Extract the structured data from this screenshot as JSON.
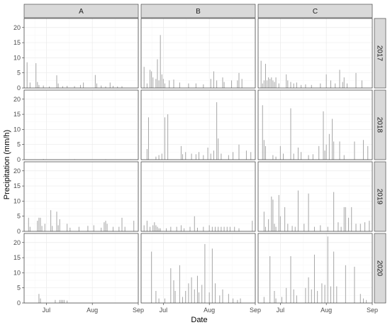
{
  "chart_data": {
    "type": "bar",
    "xlabel": "Date",
    "ylabel": "Precipitation (mm/h)",
    "columns": [
      "A",
      "B",
      "C"
    ],
    "rows": [
      "2017",
      "2018",
      "2019",
      "2020"
    ],
    "x_range": [
      "2017-06-16",
      "2017-09-01"
    ],
    "x_ticks": [
      {
        "date": "2017-07-01",
        "label": "Jul"
      },
      {
        "date": "2017-08-01",
        "label": "Aug"
      },
      {
        "date": "2017-09-01",
        "label": "Sep"
      }
    ],
    "ylim": [
      0,
      23
    ],
    "y_ticks": [
      0,
      5,
      10,
      15,
      20
    ],
    "grid": true,
    "bar_color": "#a6a6a6",
    "panels": {
      "2017": {
        "A": [
          [
            "2017-06-18",
            8.5
          ],
          [
            "2017-06-20",
            1.8
          ],
          [
            "2017-06-24",
            8.2
          ],
          [
            "2017-06-25",
            2.0
          ],
          [
            "2017-06-26",
            1.0
          ],
          [
            "2017-06-29",
            0.8
          ],
          [
            "2017-07-03",
            0.5
          ],
          [
            "2017-07-08",
            4.2
          ],
          [
            "2017-07-09",
            1.5
          ],
          [
            "2017-07-12",
            0.6
          ],
          [
            "2017-07-15",
            0.7
          ],
          [
            "2017-07-20",
            0.6
          ],
          [
            "2017-07-24",
            1.0
          ],
          [
            "2017-07-26",
            1.8
          ],
          [
            "2017-08-03",
            4.3
          ],
          [
            "2017-08-04",
            1.5
          ],
          [
            "2017-08-07",
            0.8
          ],
          [
            "2017-08-10",
            0.5
          ],
          [
            "2017-08-13",
            1.8
          ],
          [
            "2017-08-15",
            0.7
          ],
          [
            "2017-08-18",
            0.5
          ],
          [
            "2017-08-21",
            0.6
          ]
        ],
        "B": [
          [
            "2017-06-18",
            7.0
          ],
          [
            "2017-06-20",
            1.5
          ],
          [
            "2017-06-22",
            6.0
          ],
          [
            "2017-06-23",
            5.5
          ],
          [
            "2017-06-24",
            3.5
          ],
          [
            "2017-06-26",
            3.0
          ],
          [
            "2017-06-27",
            9.5
          ],
          [
            "2017-06-28",
            2.5
          ],
          [
            "2017-06-29",
            17.5
          ],
          [
            "2017-06-30",
            4.5
          ],
          [
            "2017-07-01",
            3.0
          ],
          [
            "2017-07-02",
            1.5
          ],
          [
            "2017-07-05",
            2.5
          ],
          [
            "2017-07-08",
            2.8
          ],
          [
            "2017-07-12",
            1.8
          ],
          [
            "2017-07-18",
            1.5
          ],
          [
            "2017-07-23",
            1.5
          ],
          [
            "2017-07-28",
            1.2
          ],
          [
            "2017-08-02",
            3.0
          ],
          [
            "2017-08-04",
            5.5
          ],
          [
            "2017-08-06",
            2.5
          ],
          [
            "2017-08-10",
            3.5
          ],
          [
            "2017-08-11",
            2.0
          ],
          [
            "2017-08-16",
            2.5
          ],
          [
            "2017-08-20",
            2.5
          ],
          [
            "2017-08-21",
            5.0
          ],
          [
            "2017-08-23",
            3.0
          ]
        ],
        "C": [
          [
            "2017-06-18",
            9.0
          ],
          [
            "2017-06-19",
            1.5
          ],
          [
            "2017-06-20",
            2.5
          ],
          [
            "2017-06-21",
            8.0
          ],
          [
            "2017-06-22",
            2.5
          ],
          [
            "2017-06-23",
            3.5
          ],
          [
            "2017-06-24",
            3.0
          ],
          [
            "2017-06-25",
            3.5
          ],
          [
            "2017-06-26",
            2.5
          ],
          [
            "2017-06-27",
            2.0
          ],
          [
            "2017-06-28",
            3.5
          ],
          [
            "2017-06-30",
            1.5
          ],
          [
            "2017-07-05",
            4.5
          ],
          [
            "2017-07-06",
            2.5
          ],
          [
            "2017-07-08",
            2.0
          ],
          [
            "2017-07-10",
            1.5
          ],
          [
            "2017-07-12",
            1.8
          ],
          [
            "2017-07-15",
            1.0
          ],
          [
            "2017-07-18",
            1.2
          ],
          [
            "2017-07-22",
            1.0
          ],
          [
            "2017-07-28",
            1.5
          ],
          [
            "2017-08-01",
            4.5
          ],
          [
            "2017-08-04",
            2.5
          ],
          [
            "2017-08-07",
            1.5
          ],
          [
            "2017-08-10",
            6.0
          ],
          [
            "2017-08-12",
            2.0
          ],
          [
            "2017-08-13",
            3.5
          ],
          [
            "2017-08-15",
            1.5
          ],
          [
            "2017-08-21",
            5.0
          ],
          [
            "2017-08-25",
            2.5
          ]
        ]
      },
      "2018": {
        "A": [
          [
            "2017-06-29",
            0.2
          ],
          [
            "2017-07-20",
            0.15
          ],
          [
            "2017-08-10",
            0.15
          ],
          [
            "2017-08-27",
            0.1
          ]
        ],
        "B": [
          [
            "2017-06-20",
            3.5
          ],
          [
            "2017-06-21",
            14.0
          ],
          [
            "2017-06-26",
            1.0
          ],
          [
            "2017-06-28",
            1.5
          ],
          [
            "2017-06-30",
            2.0
          ],
          [
            "2017-07-02",
            14.0
          ],
          [
            "2017-07-04",
            15.0
          ],
          [
            "2017-07-13",
            4.5
          ],
          [
            "2017-07-14",
            1.8
          ],
          [
            "2017-07-16",
            2.5
          ],
          [
            "2017-07-20",
            2.0
          ],
          [
            "2017-07-23",
            1.8
          ],
          [
            "2017-07-25",
            2.5
          ],
          [
            "2017-07-28",
            1.5
          ],
          [
            "2017-07-31",
            4.0
          ],
          [
            "2017-08-02",
            2.0
          ],
          [
            "2017-08-04",
            3.0
          ],
          [
            "2017-08-06",
            19.0
          ],
          [
            "2017-08-07",
            7.0
          ],
          [
            "2017-08-09",
            2.0
          ],
          [
            "2017-08-14",
            1.5
          ],
          [
            "2017-08-17",
            2.5
          ],
          [
            "2017-08-21",
            5.0
          ],
          [
            "2017-08-26",
            3.0
          ],
          [
            "2017-08-29",
            2.5
          ]
        ],
        "C": [
          [
            "2017-06-19",
            18.0
          ],
          [
            "2017-06-20",
            6.5
          ],
          [
            "2017-06-21",
            4.5
          ],
          [
            "2017-06-26",
            1.5
          ],
          [
            "2017-06-28",
            1.0
          ],
          [
            "2017-07-01",
            4.5
          ],
          [
            "2017-07-03",
            2.0
          ],
          [
            "2017-07-08",
            17.0
          ],
          [
            "2017-07-10",
            2.0
          ],
          [
            "2017-07-13",
            4.0
          ],
          [
            "2017-07-15",
            2.5
          ],
          [
            "2017-07-20",
            1.5
          ],
          [
            "2017-07-23",
            1.8
          ],
          [
            "2017-07-27",
            4.5
          ],
          [
            "2017-07-30",
            16.0
          ],
          [
            "2017-07-31",
            3.0
          ],
          [
            "2017-08-01",
            5.0
          ],
          [
            "2017-08-03",
            8.5
          ],
          [
            "2017-08-05",
            13.5
          ],
          [
            "2017-08-06",
            6.0
          ],
          [
            "2017-08-10",
            6.0
          ],
          [
            "2017-08-13",
            1.5
          ],
          [
            "2017-08-20",
            6.0
          ],
          [
            "2017-08-26",
            6.5
          ],
          [
            "2017-08-29",
            4.5
          ]
        ]
      },
      "2019": {
        "A": [
          [
            "2017-06-19",
            4.5
          ],
          [
            "2017-06-20",
            1.5
          ],
          [
            "2017-06-25",
            3.5
          ],
          [
            "2017-06-26",
            4.5
          ],
          [
            "2017-06-27",
            4.5
          ],
          [
            "2017-06-28",
            1.8
          ],
          [
            "2017-06-30",
            2.5
          ],
          [
            "2017-07-04",
            7.0
          ],
          [
            "2017-07-05",
            1.8
          ],
          [
            "2017-07-08",
            6.5
          ],
          [
            "2017-07-09",
            2.0
          ],
          [
            "2017-07-10",
            4.0
          ],
          [
            "2017-07-15",
            2.5
          ],
          [
            "2017-07-17",
            1.2
          ],
          [
            "2017-07-23",
            1.5
          ],
          [
            "2017-07-29",
            1.8
          ],
          [
            "2017-08-02",
            2.0
          ],
          [
            "2017-08-07",
            1.2
          ],
          [
            "2017-08-09",
            3.0
          ],
          [
            "2017-08-10",
            3.5
          ],
          [
            "2017-08-11",
            2.5
          ],
          [
            "2017-08-15",
            1.5
          ],
          [
            "2017-08-19",
            1.5
          ],
          [
            "2017-08-21",
            4.5
          ],
          [
            "2017-08-23",
            1.5
          ],
          [
            "2017-08-29",
            3.5
          ]
        ],
        "B": [
          [
            "2017-06-18",
            2.0
          ],
          [
            "2017-06-20",
            3.5
          ],
          [
            "2017-06-22",
            1.5
          ],
          [
            "2017-06-24",
            2.0
          ],
          [
            "2017-06-25",
            3.0
          ],
          [
            "2017-06-26",
            2.0
          ],
          [
            "2017-06-27",
            1.5
          ],
          [
            "2017-06-28",
            1.0
          ],
          [
            "2017-06-29",
            1.0
          ],
          [
            "2017-07-03",
            1.0
          ],
          [
            "2017-07-06",
            1.5
          ],
          [
            "2017-07-10",
            1.5
          ],
          [
            "2017-07-13",
            2.0
          ],
          [
            "2017-07-15",
            1.0
          ],
          [
            "2017-07-19",
            1.5
          ],
          [
            "2017-07-22",
            5.0
          ],
          [
            "2017-07-24",
            1.2
          ],
          [
            "2017-07-28",
            1.5
          ],
          [
            "2017-08-01",
            2.0
          ],
          [
            "2017-08-03",
            1.5
          ],
          [
            "2017-08-05",
            1.5
          ],
          [
            "2017-08-07",
            1.5
          ],
          [
            "2017-08-09",
            1.5
          ],
          [
            "2017-08-11",
            1.5
          ],
          [
            "2017-08-13",
            1.5
          ],
          [
            "2017-08-15",
            1.5
          ],
          [
            "2017-08-18",
            1.5
          ],
          [
            "2017-08-21",
            1.0
          ],
          [
            "2017-08-30",
            3.5
          ]
        ],
        "C": [
          [
            "2017-06-20",
            6.5
          ],
          [
            "2017-06-21",
            1.5
          ],
          [
            "2017-06-23",
            4.0
          ],
          [
            "2017-06-25",
            11.5
          ],
          [
            "2017-06-26",
            10.5
          ],
          [
            "2017-06-27",
            2.5
          ],
          [
            "2017-06-28",
            1.5
          ],
          [
            "2017-06-30",
            12.0
          ],
          [
            "2017-07-01",
            5.0
          ],
          [
            "2017-07-04",
            8.0
          ],
          [
            "2017-07-06",
            2.5
          ],
          [
            "2017-07-09",
            1.8
          ],
          [
            "2017-07-11",
            1.5
          ],
          [
            "2017-07-13",
            13.5
          ],
          [
            "2017-07-17",
            2.5
          ],
          [
            "2017-07-20",
            12.5
          ],
          [
            "2017-07-24",
            1.5
          ],
          [
            "2017-07-28",
            2.0
          ],
          [
            "2017-08-02",
            1.5
          ],
          [
            "2017-08-06",
            13.0
          ],
          [
            "2017-08-09",
            3.0
          ],
          [
            "2017-08-11",
            1.5
          ],
          [
            "2017-08-13",
            8.0
          ],
          [
            "2017-08-14",
            8.0
          ],
          [
            "2017-08-16",
            4.5
          ],
          [
            "2017-08-18",
            8.0
          ],
          [
            "2017-08-21",
            2.5
          ],
          [
            "2017-08-24",
            2.5
          ],
          [
            "2017-08-27",
            3.0
          ],
          [
            "2017-08-30",
            3.5
          ]
        ]
      },
      "2020": {
        "A": [
          [
            "2017-06-26",
            3.0
          ],
          [
            "2017-06-27",
            1.5
          ],
          [
            "2017-07-07",
            1.0
          ],
          [
            "2017-07-10",
            1.0
          ],
          [
            "2017-07-11",
            1.0
          ],
          [
            "2017-07-12",
            1.0
          ],
          [
            "2017-07-13",
            1.0
          ],
          [
            "2017-07-15",
            0.8
          ]
        ],
        "B": [
          [
            "2017-06-23",
            17.0
          ],
          [
            "2017-06-26",
            4.0
          ],
          [
            "2017-06-28",
            1.5
          ],
          [
            "2017-07-02",
            1.5
          ],
          [
            "2017-07-06",
            11.5
          ],
          [
            "2017-07-08",
            7.5
          ],
          [
            "2017-07-09",
            4.0
          ],
          [
            "2017-07-12",
            12.5
          ],
          [
            "2017-07-14",
            2.0
          ],
          [
            "2017-07-16",
            4.0
          ],
          [
            "2017-07-18",
            6.5
          ],
          [
            "2017-07-20",
            8.5
          ],
          [
            "2017-07-22",
            4.5
          ],
          [
            "2017-07-24",
            9.0
          ],
          [
            "2017-07-25",
            3.5
          ],
          [
            "2017-07-27",
            6.0
          ],
          [
            "2017-07-29",
            19.5
          ],
          [
            "2017-08-01",
            3.5
          ],
          [
            "2017-08-03",
            18.0
          ],
          [
            "2017-08-05",
            6.5
          ],
          [
            "2017-08-08",
            2.5
          ],
          [
            "2017-08-10",
            4.5
          ],
          [
            "2017-08-14",
            3.0
          ],
          [
            "2017-08-17",
            1.5
          ],
          [
            "2017-08-20",
            1.0
          ],
          [
            "2017-08-22",
            1.5
          ]
        ],
        "C": [
          [
            "2017-06-20",
            2.0
          ],
          [
            "2017-06-24",
            15.5
          ],
          [
            "2017-06-27",
            4.0
          ],
          [
            "2017-06-28",
            1.5
          ],
          [
            "2017-07-02",
            2.0
          ],
          [
            "2017-07-05",
            5.0
          ],
          [
            "2017-07-08",
            15.5
          ],
          [
            "2017-07-10",
            4.5
          ],
          [
            "2017-07-12",
            2.5
          ],
          [
            "2017-07-18",
            5.0
          ],
          [
            "2017-07-20",
            8.5
          ],
          [
            "2017-07-22",
            4.5
          ],
          [
            "2017-07-24",
            16.0
          ],
          [
            "2017-07-26",
            4.0
          ],
          [
            "2017-07-29",
            6.5
          ],
          [
            "2017-07-31",
            6.0
          ],
          [
            "2017-08-02",
            22.0
          ],
          [
            "2017-08-04",
            5.5
          ],
          [
            "2017-08-06",
            17.0
          ],
          [
            "2017-08-08",
            5.5
          ],
          [
            "2017-08-14",
            12.5
          ],
          [
            "2017-08-20",
            12.0
          ],
          [
            "2017-08-24",
            3.0
          ],
          [
            "2017-08-26",
            1.5
          ],
          [
            "2017-08-28",
            1.0
          ]
        ]
      }
    }
  }
}
